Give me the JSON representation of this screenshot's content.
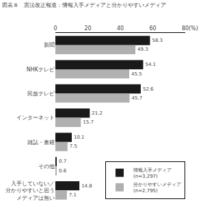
{
  "chart_data": {
    "type": "bar",
    "orientation": "horizontal",
    "title": "図表８　憲法改正報道：情報入手メディアと分かりやすいメディア",
    "xlabel": "(%)",
    "categories": [
      "新聞",
      "NHKテレビ",
      "民放テレビ",
      "インターネット",
      "雑誌・書籍",
      "その他",
      "入手していない／\n分かりやすいと思う\nメディアは無い"
    ],
    "series": [
      {
        "name": "情報入手メディア\n(n=3,297)",
        "color": "#1a1a1a",
        "values": [
          58.3,
          54.1,
          52.6,
          21.2,
          10.1,
          0.7,
          14.8
        ]
      },
      {
        "name": "分かりやすいメディア\n(n=2,795)",
        "color": "#b0b0b0",
        "values": [
          49.3,
          45.5,
          45.7,
          15.7,
          7.5,
          0.6,
          7.1
        ]
      }
    ],
    "xlim": [
      0,
      80
    ],
    "xticks": [
      0,
      20,
      40,
      60,
      80
    ],
    "data_labels": true,
    "grid": false,
    "legend": "lower right"
  }
}
